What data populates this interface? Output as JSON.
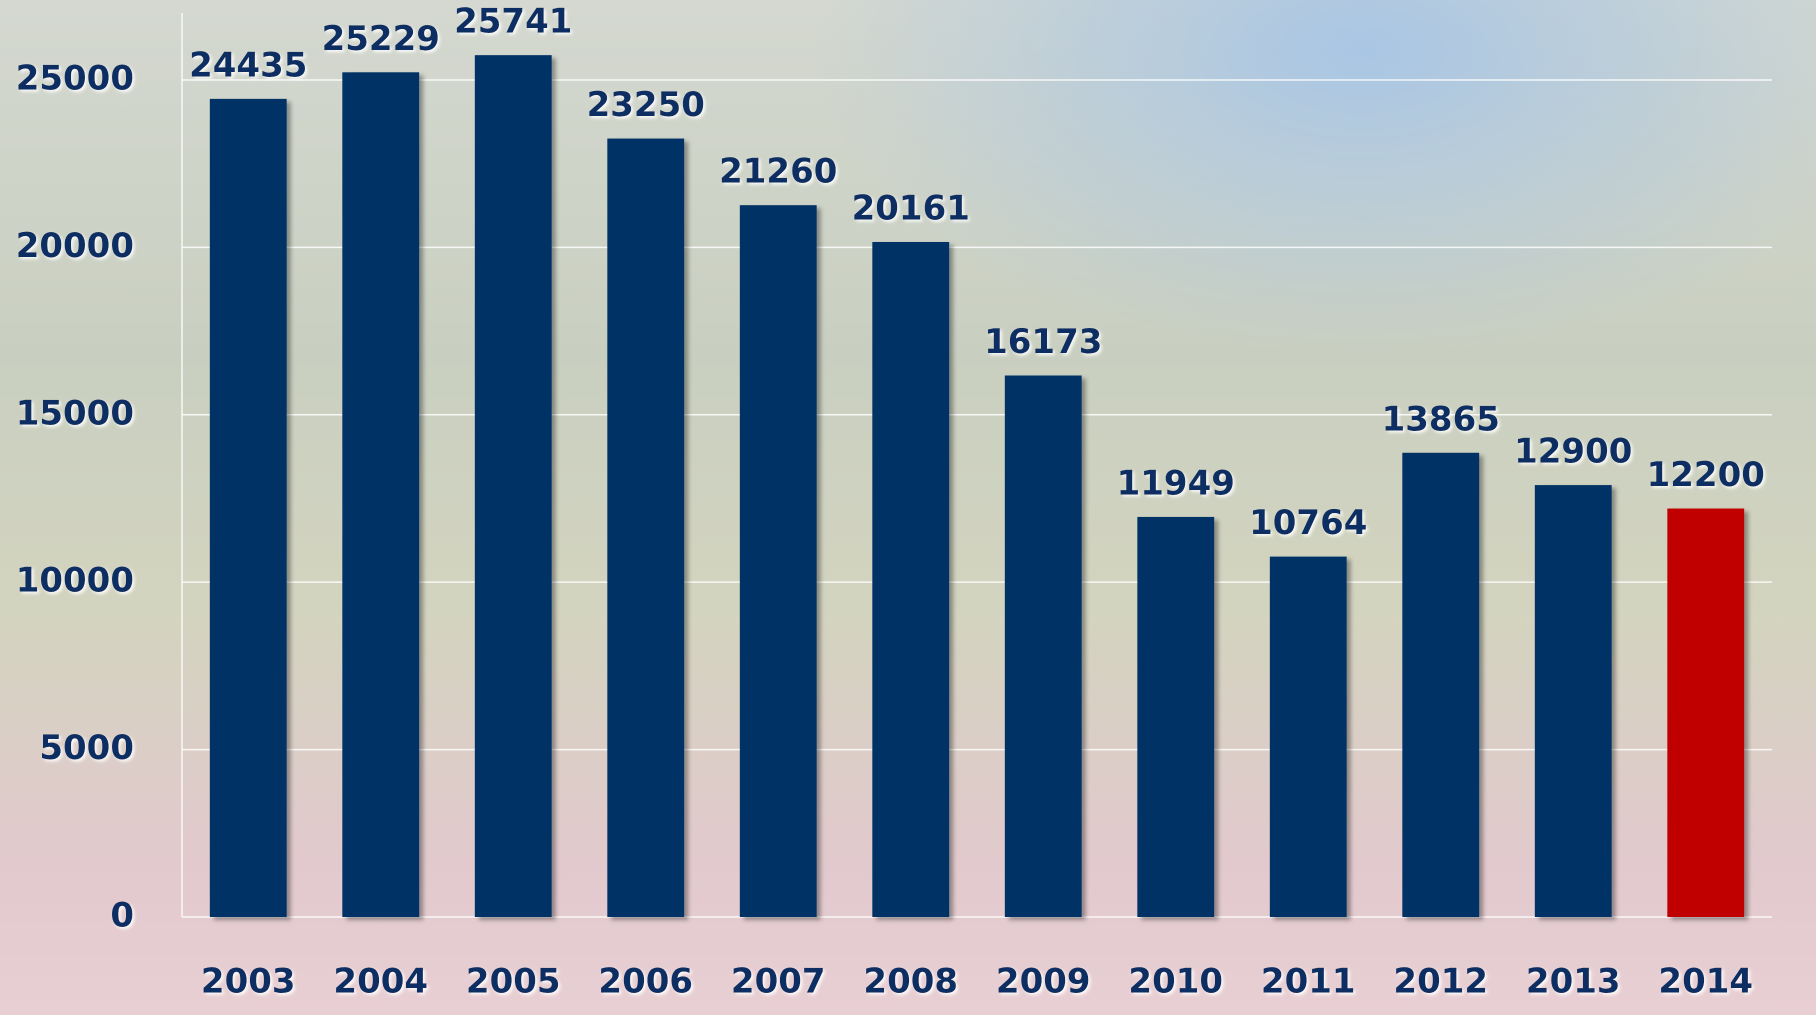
{
  "chart_data": {
    "type": "bar",
    "categories": [
      "2003",
      "2004",
      "2005",
      "2006",
      "2007",
      "2008",
      "2009",
      "2010",
      "2011",
      "2012",
      "2013",
      "2014"
    ],
    "values": [
      24435,
      25229,
      25741,
      23250,
      21260,
      20161,
      16173,
      11949,
      10764,
      13865,
      12900,
      12200
    ],
    "colors": [
      "#003366",
      "#003366",
      "#003366",
      "#003366",
      "#003366",
      "#003366",
      "#003366",
      "#003366",
      "#003366",
      "#003366",
      "#003366",
      "#c00000"
    ],
    "ylim": [
      0,
      27000
    ],
    "yticks": [
      0,
      5000,
      10000,
      15000,
      20000,
      25000
    ],
    "grid": true
  }
}
